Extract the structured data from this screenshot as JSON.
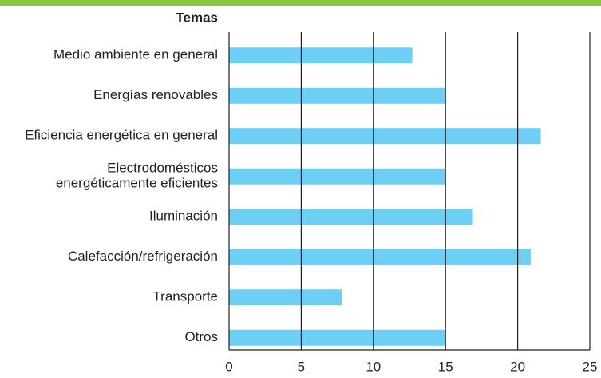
{
  "chart_data": {
    "type": "bar",
    "orientation": "horizontal",
    "title": "Temas",
    "categories": [
      "Medio ambiente en general",
      "Energías renovables",
      "Eficiencia energética en general",
      "Electrodomésticos\nenergéticamente eficientes",
      "Iluminación",
      "Calefacción/refrigeración",
      "Transporte",
      "Otros"
    ],
    "values": [
      12.7,
      15,
      21.6,
      15,
      16.9,
      20.9,
      7.8,
      15
    ],
    "color": "#6dcff6",
    "xlim": [
      0,
      25
    ],
    "xticks": [
      0,
      5,
      10,
      15,
      20,
      25
    ],
    "grid": true
  }
}
